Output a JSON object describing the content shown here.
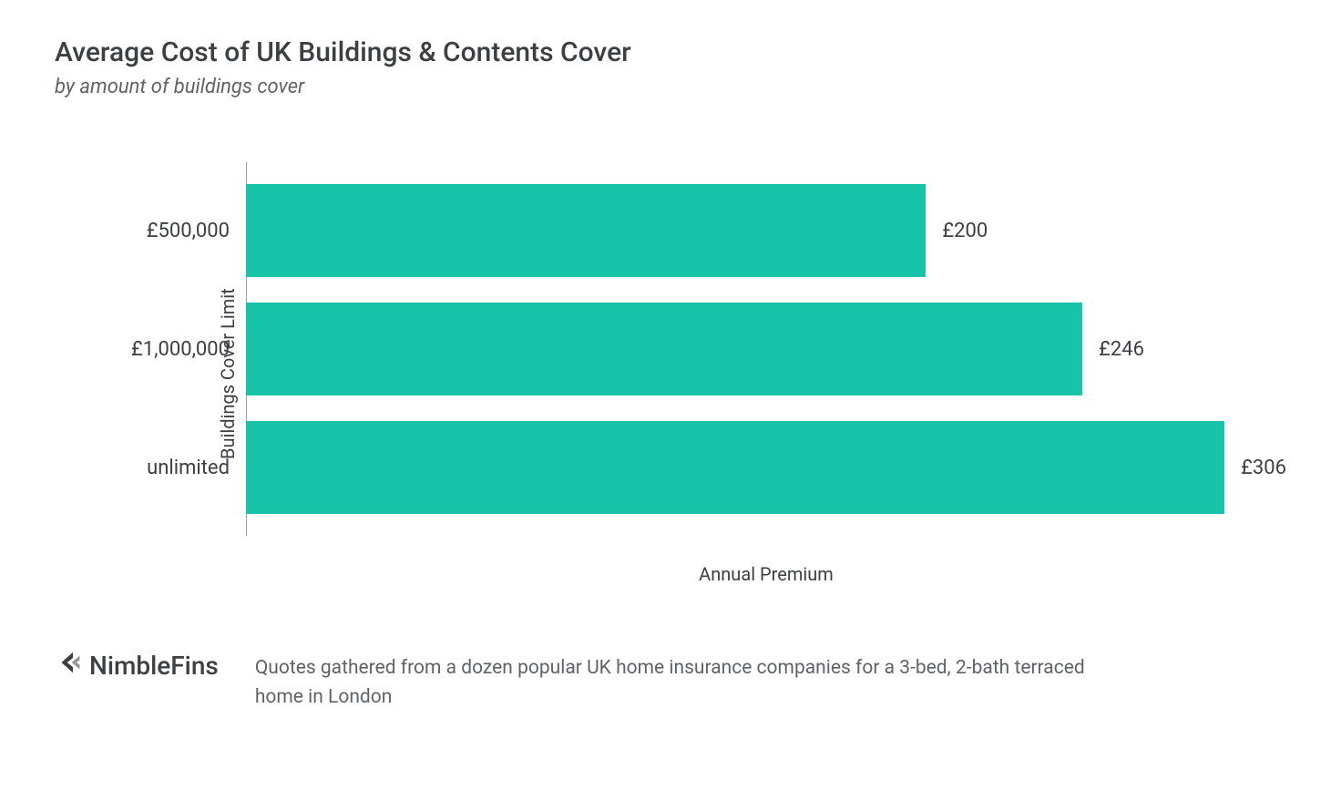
{
  "title": "Average Cost of UK Buildings & Contents Cover",
  "subtitle": "by amount of buildings cover",
  "chart": {
    "type": "bar-horizontal",
    "y_axis_label": "Buildings Cover Limit",
    "x_axis_label": "Annual Premium",
    "bar_color": "#17c3a9",
    "background_color": "#ffffff",
    "axis_line_color": "#9aa0a6",
    "text_color": "#3c4043",
    "label_fontsize": 22,
    "axis_label_fontsize": 20,
    "xmax": 306,
    "bar_height_pct": 78,
    "bars": [
      {
        "category": "£500,000",
        "value": 200,
        "value_label": "£200"
      },
      {
        "category": "£1,000,000",
        "value": 246,
        "value_label": "£246"
      },
      {
        "category": "unlimited",
        "value": 306,
        "value_label": "£306"
      }
    ]
  },
  "brand": {
    "name": "NimbleFins"
  },
  "footnote": "Quotes gathered from a dozen popular UK home insurance companies for a 3-bed, 2-bath terraced home in London"
}
